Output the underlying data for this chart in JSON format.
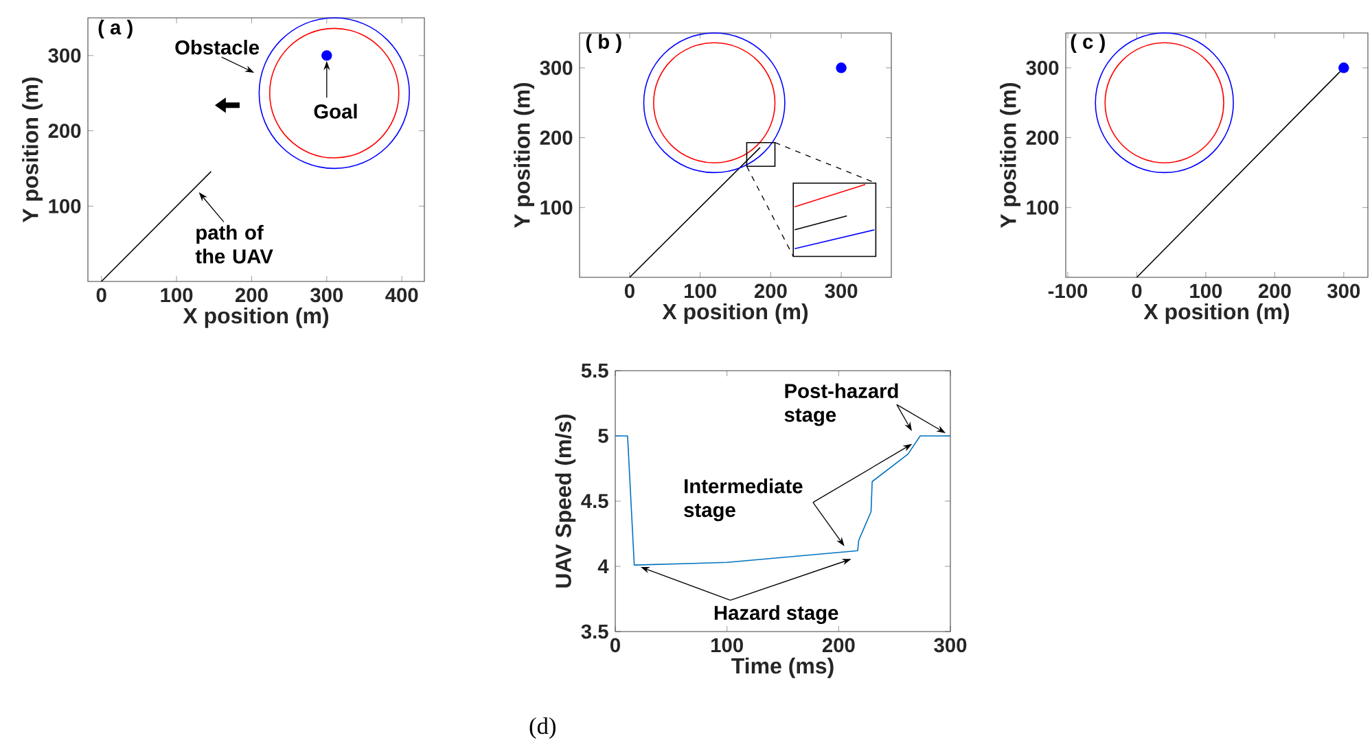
{
  "chart_data": [
    {
      "type": "line",
      "xlabel": "X position (m)",
      "ylabel": "Y position (m)",
      "xlim": [
        -18,
        430
      ],
      "ylim": [
        0,
        350
      ],
      "xticks": [
        0,
        100,
        200,
        300,
        400
      ],
      "yticks": [
        100,
        200,
        300
      ],
      "annotations": [
        "( a )",
        "Obstacle",
        {
          "text": "Goal",
          "x": 300,
          "y": 300
        },
        {
          "text": "path of the UAV",
          "x": 125,
          "y": 124
        }
      ],
      "series": [
        {
          "color": "#000000",
          "x": [
            0,
            146
          ],
          "values": [
            0,
            146
          ]
        },
        {
          "type": "scatter",
          "color": "#0000ff",
          "x": [
            300
          ],
          "values": [
            300
          ]
        }
      ]
    },
    {
      "type": "line",
      "xlabel": "X position (m)",
      "ylabel": "Y position (m)",
      "xlim": [
        -71,
        371
      ],
      "ylim": [
        0,
        350
      ],
      "xticks": [
        0,
        100,
        200,
        300
      ],
      "yticks": [
        100,
        200,
        300
      ],
      "annotations": [
        "( b )"
      ],
      "series": [
        {
          "color": "#000000",
          "x": [
            0,
            185
          ],
          "values": [
            0,
            186
          ]
        },
        {
          "type": "scatter",
          "color": "#0000ff",
          "x": [
            300
          ],
          "values": [
            300
          ]
        }
      ]
    },
    {
      "type": "line",
      "xlabel": "X position (m)",
      "ylabel": "Y position (m)",
      "xlim": [
        -103,
        335
      ],
      "ylim": [
        0,
        350
      ],
      "xticks": [
        -100,
        0,
        100,
        200,
        300
      ],
      "yticks": [
        100,
        200,
        300
      ],
      "annotations": [
        "( c )"
      ],
      "series": [
        {
          "color": "#000000",
          "x": [
            0,
            300
          ],
          "values": [
            0,
            300
          ]
        },
        {
          "type": "scatter",
          "color": "#0000ff",
          "x": [
            300
          ],
          "values": [
            300
          ]
        }
      ]
    },
    {
      "type": "line",
      "xlabel": "Time (ms)",
      "ylabel": "UAV Speed (m/s)",
      "xlim": [
        0,
        300
      ],
      "ylim": [
        3.5,
        5.5
      ],
      "xticks": [
        0,
        100,
        200,
        300
      ],
      "yticks": [
        3.5,
        4,
        4.5,
        5,
        5.5
      ],
      "annotations": [
        {
          "text": "Post-hazard stage",
          "x": 300,
          "y": 5
        },
        {
          "text": "Intermediate stage",
          "x": 208,
          "y": 4.12
        },
        {
          "text": "Hazard stage",
          "x": 18,
          "y": 4.01
        },
        "(d)"
      ],
      "series": [
        {
          "color": "#0072bd",
          "x": [
            0,
            11,
            17,
            100,
            217,
            218,
            229,
            230,
            262,
            273,
            300
          ],
          "values": [
            5,
            5,
            4.01,
            4.03,
            4.12,
            4.2,
            4.42,
            4.65,
            4.86,
            5,
            5
          ]
        }
      ]
    }
  ]
}
